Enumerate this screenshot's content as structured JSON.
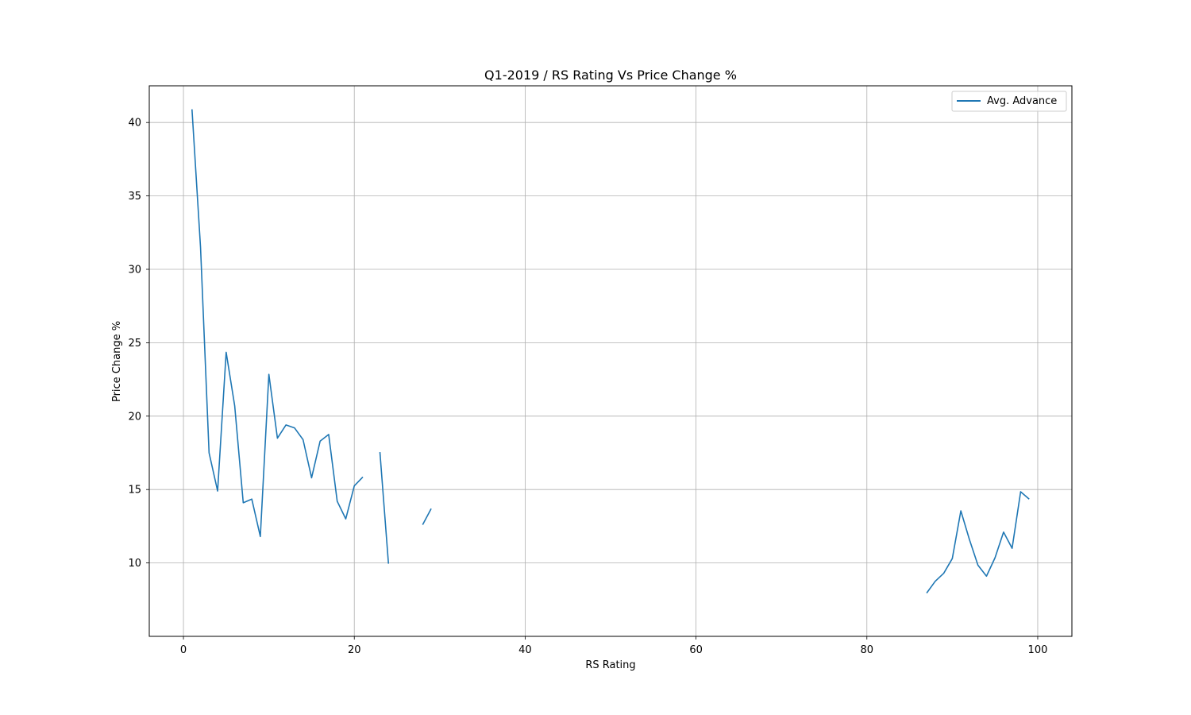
{
  "chart_data": {
    "type": "line",
    "title": "Q1-2019 / RS Rating Vs Price Change %",
    "xlabel": "RS Rating",
    "ylabel": "Price Change %",
    "xlim": [
      -4,
      104
    ],
    "ylim": [
      5,
      42.5
    ],
    "xticks": [
      0,
      20,
      40,
      60,
      80,
      100
    ],
    "yticks": [
      10,
      15,
      20,
      25,
      30,
      35,
      40
    ],
    "grid": true,
    "legend_position": "top-right",
    "color": "#1f77b4",
    "series": [
      {
        "name": "Avg. Advance",
        "segments": [
          [
            [
              1,
              40.9
            ],
            [
              2,
              31.5
            ],
            [
              3,
              17.5
            ],
            [
              4,
              14.9
            ],
            [
              5,
              24.35
            ],
            [
              6,
              20.7
            ],
            [
              7,
              14.1
            ],
            [
              8,
              14.35
            ],
            [
              9,
              11.8
            ],
            [
              10,
              22.85
            ],
            [
              11,
              18.5
            ],
            [
              12,
              19.4
            ],
            [
              13,
              19.2
            ],
            [
              14,
              18.4
            ],
            [
              15,
              15.8
            ],
            [
              16,
              18.3
            ],
            [
              17,
              18.75
            ],
            [
              18,
              14.2
            ],
            [
              19,
              13.0
            ],
            [
              20,
              15.25
            ],
            [
              21,
              15.85
            ]
          ],
          [
            [
              23,
              17.55
            ],
            [
              24,
              9.95
            ]
          ],
          [
            [
              28,
              12.6
            ],
            [
              29,
              13.7
            ]
          ],
          [
            [
              87,
              7.95
            ],
            [
              88,
              8.75
            ],
            [
              89,
              9.3
            ],
            [
              90,
              10.3
            ],
            [
              91,
              13.55
            ],
            [
              92,
              11.6
            ],
            [
              93,
              9.85
            ],
            [
              94,
              9.1
            ],
            [
              95,
              10.35
            ],
            [
              96,
              12.1
            ],
            [
              97,
              11.0
            ],
            [
              98,
              14.85
            ],
            [
              99,
              14.35
            ]
          ]
        ]
      }
    ]
  }
}
